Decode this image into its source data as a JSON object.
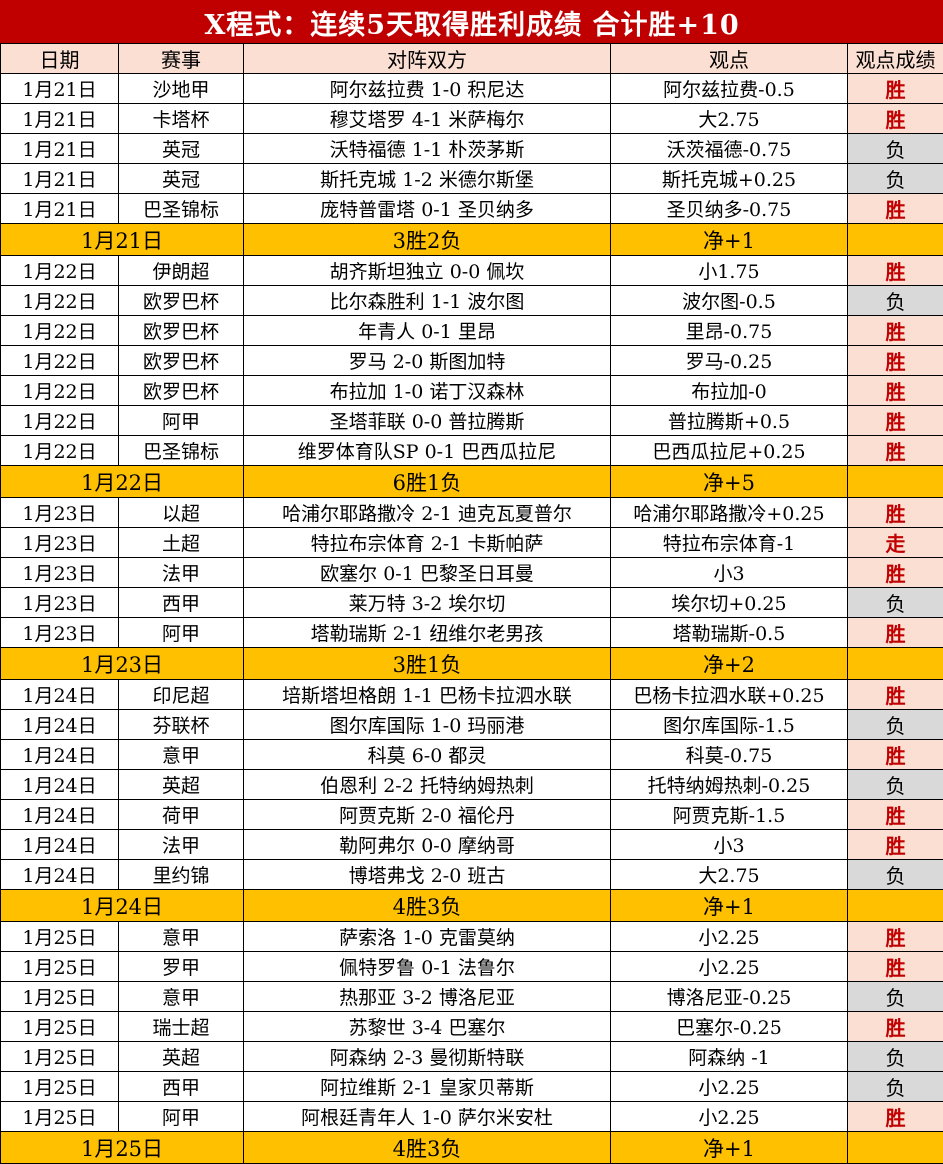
{
  "title": "X程式：连续5天取得胜利成绩  合计胜+10",
  "columns": [
    "日期",
    "赛事",
    "对阵双方",
    "观点",
    "观点成绩"
  ],
  "colors": {
    "title_bg": "#C00000",
    "title_text": "#FFFFFF",
    "header_bg": "#FBDFD3",
    "win_bg": "#FBDFD3",
    "win_text": "#C00000",
    "lose_bg": "#D9D9D9",
    "lose_text": "#000000",
    "summary_bg": "#FFC000",
    "border": "#000000"
  },
  "sections": [
    {
      "rows": [
        {
          "date": "1月21日",
          "league": "沙地甲",
          "match": "阿尔兹拉费 1-0 积尼达",
          "view": "阿尔兹拉费-0.5",
          "result": "胜"
        },
        {
          "date": "1月21日",
          "league": "卡塔杯",
          "match": "穆艾塔罗 4-1 米萨梅尔",
          "view": "大2.75",
          "result": "胜"
        },
        {
          "date": "1月21日",
          "league": "英冠",
          "match": "沃特福德 1-1 朴茨茅斯",
          "view": "沃茨福德-0.75",
          "result": "负"
        },
        {
          "date": "1月21日",
          "league": "英冠",
          "match": "斯托克城 1-2 米德尔斯堡",
          "view": "斯托克城+0.25",
          "result": "负"
        },
        {
          "date": "1月21日",
          "league": "巴圣锦标",
          "match": "庞特普雷塔 0-1 圣贝纳多",
          "view": "圣贝纳多-0.75",
          "result": "胜"
        }
      ],
      "summary": {
        "date": "1月21日",
        "record": "3胜2负",
        "net": "净+1"
      }
    },
    {
      "rows": [
        {
          "date": "1月22日",
          "league": "伊朗超",
          "match": "胡齐斯坦独立 0-0 佩坎",
          "view": "小1.75",
          "result": "胜"
        },
        {
          "date": "1月22日",
          "league": "欧罗巴杯",
          "match": "比尔森胜利 1-1 波尔图",
          "view": "波尔图-0.5",
          "result": "负"
        },
        {
          "date": "1月22日",
          "league": "欧罗巴杯",
          "match": "年青人 0-1 里昂",
          "view": "里昂-0.75",
          "result": "胜"
        },
        {
          "date": "1月22日",
          "league": "欧罗巴杯",
          "match": "罗马 2-0 斯图加特",
          "view": "罗马-0.25",
          "result": "胜"
        },
        {
          "date": "1月22日",
          "league": "欧罗巴杯",
          "match": "布拉加 1-0 诺丁汉森林",
          "view": "布拉加-0",
          "result": "胜"
        },
        {
          "date": "1月22日",
          "league": "阿甲",
          "match": "圣塔菲联 0-0 普拉腾斯",
          "view": "普拉腾斯+0.5",
          "result": "胜"
        },
        {
          "date": "1月22日",
          "league": "巴圣锦标",
          "match": "维罗体育队SP 0-1 巴西瓜拉尼",
          "view": "巴西瓜拉尼+0.25",
          "result": "胜"
        }
      ],
      "summary": {
        "date": "1月22日",
        "record": "6胜1负",
        "net": "净+5"
      }
    },
    {
      "rows": [
        {
          "date": "1月23日",
          "league": "以超",
          "match": "哈浦尔耶路撒冷 2-1 迪克瓦夏普尔",
          "view": "哈浦尔耶路撒冷+0.25",
          "result": "胜"
        },
        {
          "date": "1月23日",
          "league": "土超",
          "match": "特拉布宗体育 2-1 卡斯帕萨",
          "view": "特拉布宗体育-1",
          "result": "走"
        },
        {
          "date": "1月23日",
          "league": "法甲",
          "match": "欧塞尔 0-1 巴黎圣日耳曼",
          "view": "小3",
          "result": "胜"
        },
        {
          "date": "1月23日",
          "league": "西甲",
          "match": "莱万特 3-2 埃尔切",
          "view": "埃尔切+0.25",
          "result": "负"
        },
        {
          "date": "1月23日",
          "league": "阿甲",
          "match": "塔勒瑞斯 2-1 纽维尔老男孩",
          "view": "塔勒瑞斯-0.5",
          "result": "胜"
        }
      ],
      "summary": {
        "date": "1月23日",
        "record": "3胜1负",
        "net": "净+2"
      }
    },
    {
      "rows": [
        {
          "date": "1月24日",
          "league": "印尼超",
          "match": "培斯塔坦格朗 1-1 巴杨卡拉泗水联",
          "view": "巴杨卡拉泗水联+0.25",
          "result": "胜"
        },
        {
          "date": "1月24日",
          "league": "芬联杯",
          "match": "图尔库国际 1-0 玛丽港",
          "view": "图尔库国际-1.5",
          "result": "负"
        },
        {
          "date": "1月24日",
          "league": "意甲",
          "match": "科莫 6-0 都灵",
          "view": "科莫-0.75",
          "result": "胜"
        },
        {
          "date": "1月24日",
          "league": "英超",
          "match": "伯恩利 2-2 托特纳姆热刺",
          "view": "托特纳姆热刺-0.25",
          "result": "负"
        },
        {
          "date": "1月24日",
          "league": "荷甲",
          "match": "阿贾克斯 2-0 福伦丹",
          "view": "阿贾克斯-1.5",
          "result": "胜"
        },
        {
          "date": "1月24日",
          "league": "法甲",
          "match": "勒阿弗尔 0-0 摩纳哥",
          "view": "小3",
          "result": "胜"
        },
        {
          "date": "1月24日",
          "league": "里约锦",
          "match": "博塔弗戈 2-0 班古",
          "view": "大2.75",
          "result": "负"
        }
      ],
      "summary": {
        "date": "1月24日",
        "record": "4胜3负",
        "net": "净+1"
      }
    },
    {
      "rows": [
        {
          "date": "1月25日",
          "league": "意甲",
          "match": "萨索洛 1-0 克雷莫纳",
          "view": "小2.25",
          "result": "胜"
        },
        {
          "date": "1月25日",
          "league": "罗甲",
          "match": "佩特罗鲁 0-1 法鲁尔",
          "view": "小2.25",
          "result": "胜"
        },
        {
          "date": "1月25日",
          "league": "意甲",
          "match": "热那亚 3-2 博洛尼亚",
          "view": "博洛尼亚-0.25",
          "result": "负"
        },
        {
          "date": "1月25日",
          "league": "瑞士超",
          "match": "苏黎世 3-4 巴塞尔",
          "view": "巴塞尔-0.25",
          "result": "胜"
        },
        {
          "date": "1月25日",
          "league": "英超",
          "match": "阿森纳 2-3 曼彻斯特联",
          "view": "阿森纳 -1",
          "result": "负"
        },
        {
          "date": "1月25日",
          "league": "西甲",
          "match": "阿拉维斯 2-1 皇家贝蒂斯",
          "view": "小2.25",
          "result": "负"
        },
        {
          "date": "1月25日",
          "league": "阿甲",
          "match": "阿根廷青年人 1-0 萨尔米安杜",
          "view": "小2.25",
          "result": "胜"
        }
      ],
      "summary": {
        "date": "1月25日",
        "record": "4胜3负",
        "net": "净+1"
      }
    }
  ]
}
